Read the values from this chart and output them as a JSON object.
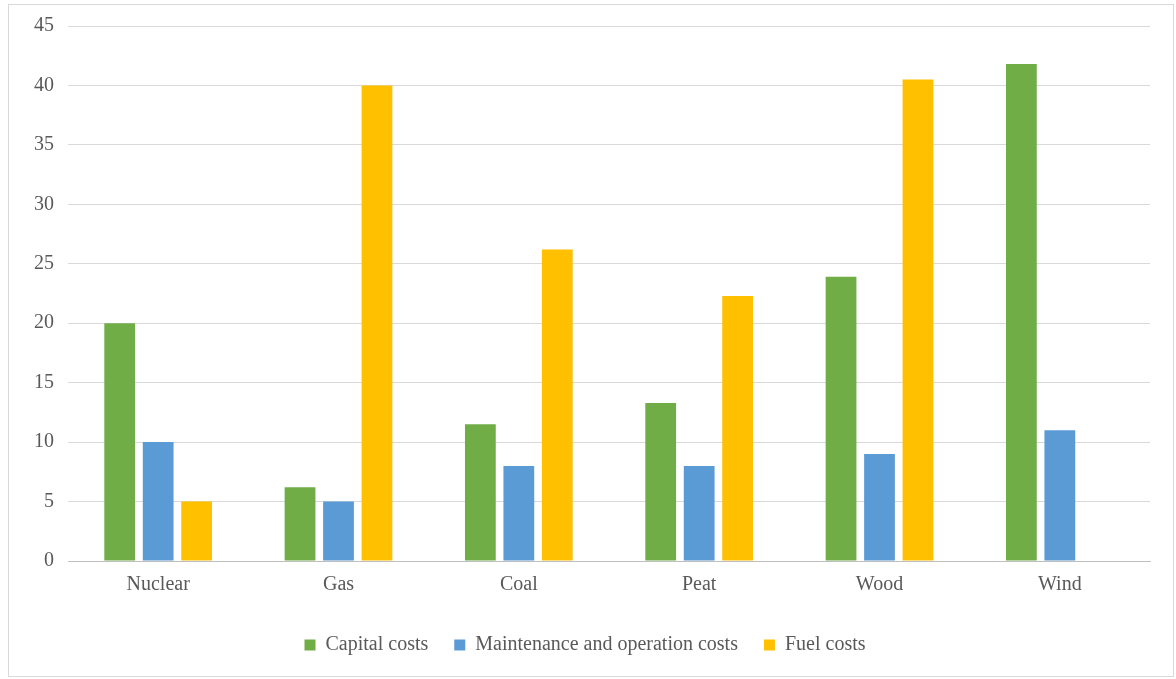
{
  "chart_data": {
    "type": "bar",
    "categories": [
      "Nuclear",
      "Gas",
      "Coal",
      "Peat",
      "Wood",
      "Wind"
    ],
    "series": [
      {
        "name": "Capital costs",
        "color": "#70ad47",
        "values": [
          20,
          6.2,
          11.5,
          13.3,
          23.9,
          41.8
        ]
      },
      {
        "name": "Maintenance and operation costs",
        "color": "#5b9bd5",
        "values": [
          10,
          5,
          8,
          8,
          9,
          11
        ]
      },
      {
        "name": "Fuel costs",
        "color": "#ffc000",
        "values": [
          5,
          40,
          26.2,
          22.3,
          40.5,
          null
        ]
      }
    ],
    "ylim": [
      0,
      45
    ],
    "yticks": [
      0,
      5,
      10,
      15,
      20,
      25,
      30,
      35,
      40,
      45
    ],
    "grid": "y",
    "legend": "bottom"
  }
}
